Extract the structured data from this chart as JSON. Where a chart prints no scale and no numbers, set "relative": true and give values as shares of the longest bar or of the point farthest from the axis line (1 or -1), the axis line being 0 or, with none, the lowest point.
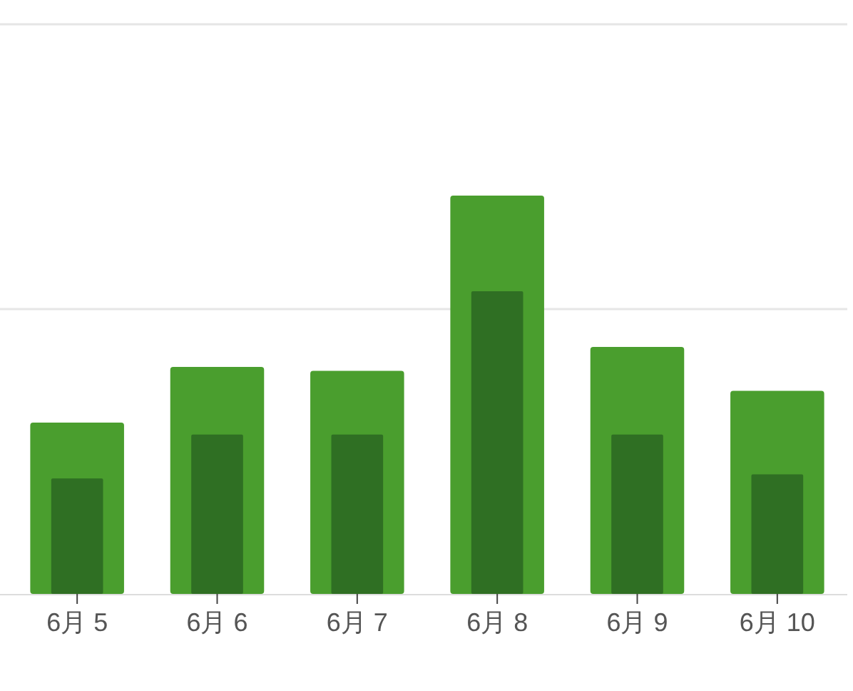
{
  "chart_data": {
    "type": "bar",
    "relative": true,
    "ref_lines": [
      {
        "axis": "y",
        "value": 0.715,
        "color": "#e6e6e6"
      },
      {
        "axis": "y",
        "value": 1.43,
        "color": "#e6e6e6"
      }
    ],
    "categories": [
      "6月 5",
      "6月 6",
      "6月 7",
      "6月 8",
      "6月 9",
      "6月 10"
    ],
    "series": [
      {
        "color": "#4a9e2e",
        "values": [
          0.43,
          0.57,
          0.56,
          1,
          0.62,
          0.51
        ]
      },
      {
        "color": "#2f6f23",
        "values": [
          0.29,
          0.4,
          0.4,
          0.76,
          0.4,
          0.3
        ]
      }
    ]
  }
}
